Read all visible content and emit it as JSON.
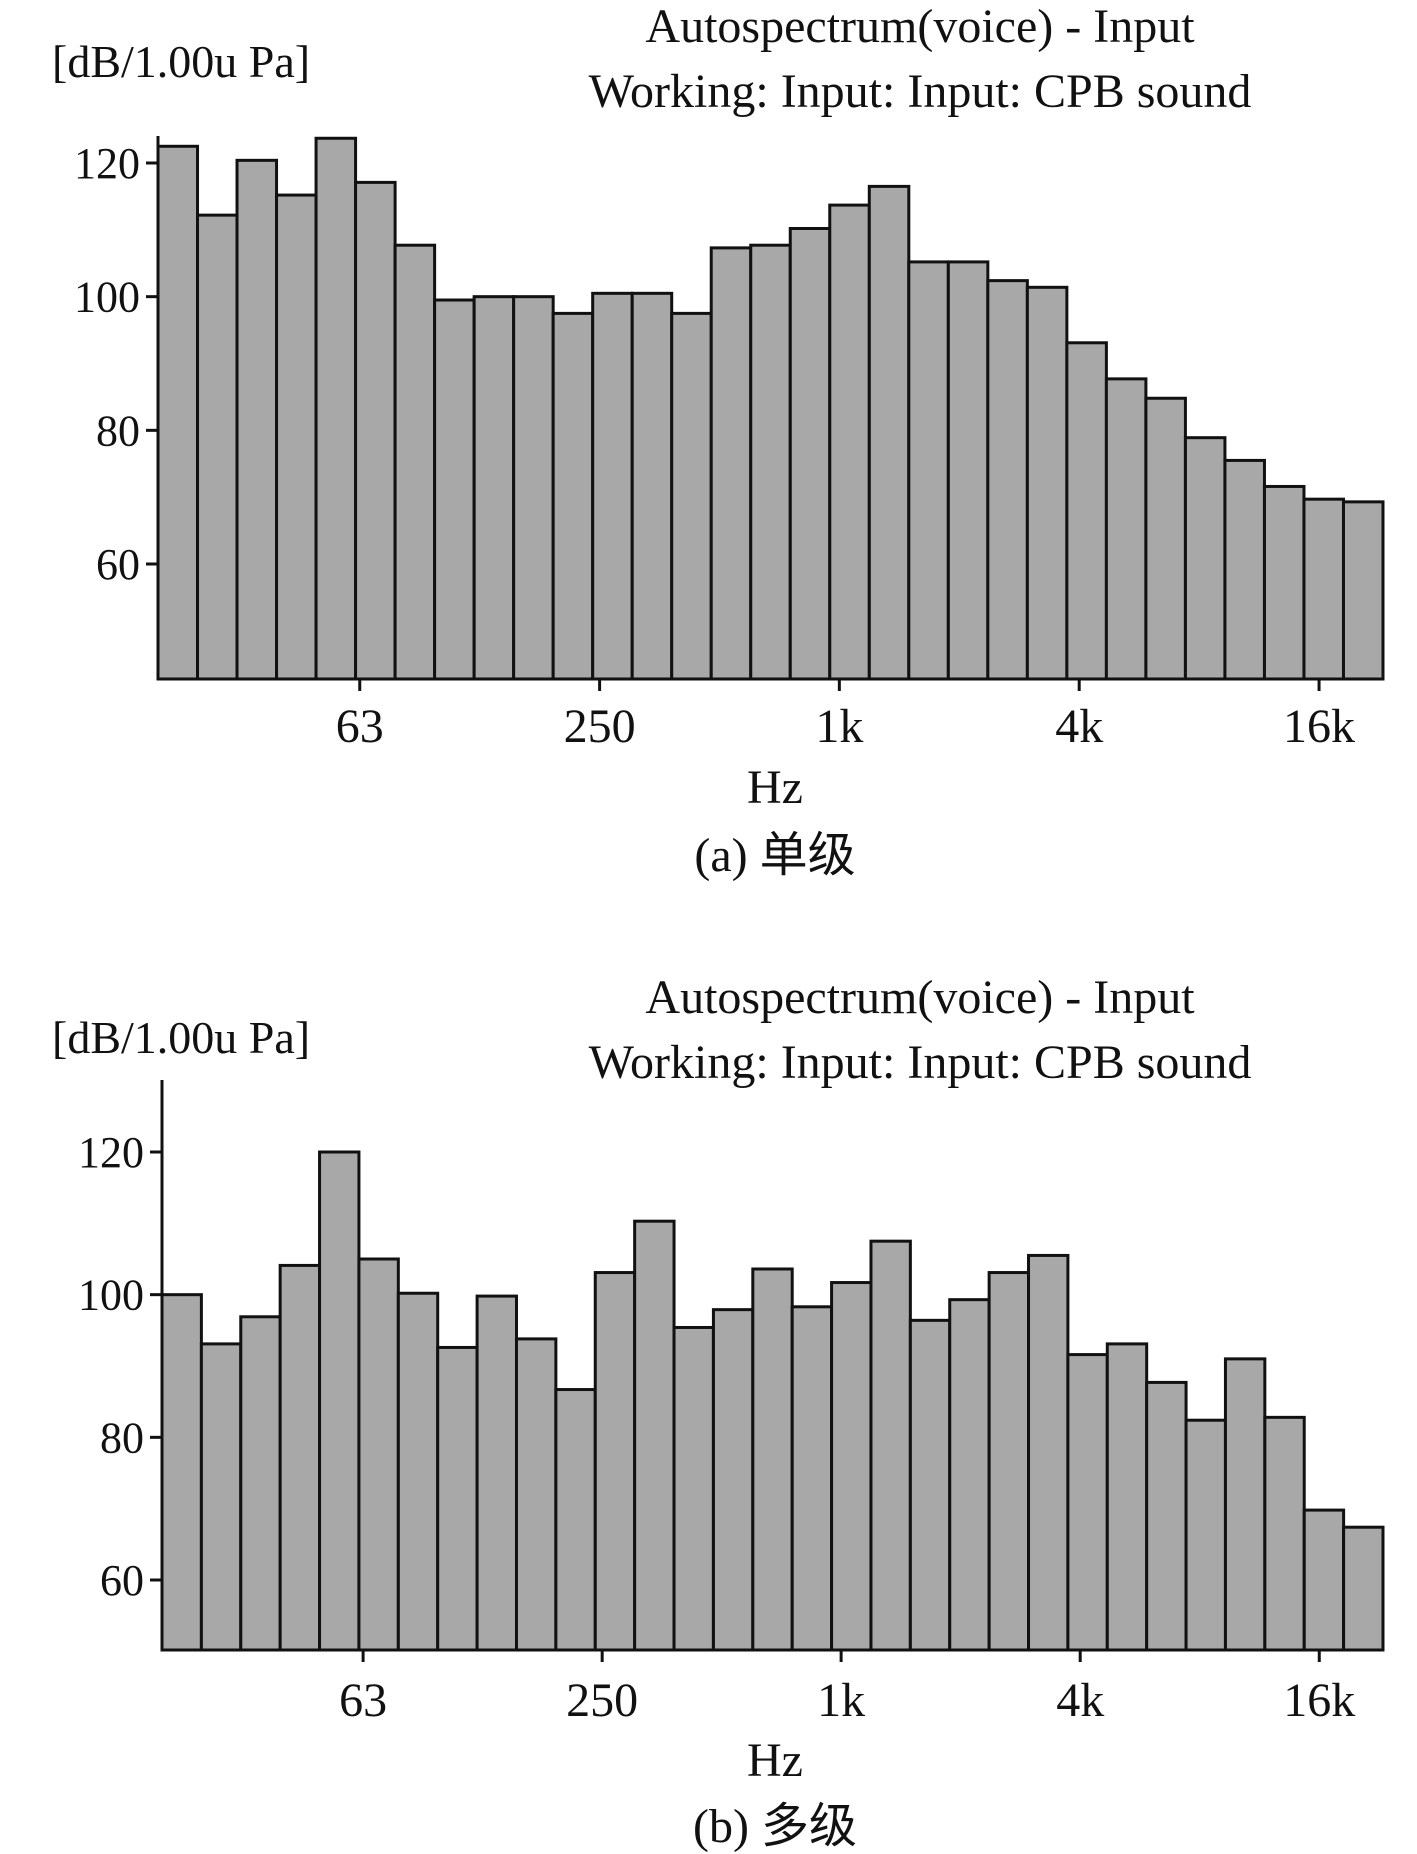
{
  "chart_data": [
    {
      "type": "bar",
      "title": "Autospectrum(voice) - Input",
      "subtitle": "Working: Input: Input: CPB sound",
      "ylabel": "[dB/1.00u Pa]",
      "xlabel": "Hz",
      "caption": "(a) 单级",
      "x_scale": "log (1/3-octave bands)",
      "xticks": [
        "63",
        "250",
        "1k",
        "4k",
        "16k"
      ],
      "yticks": [
        60,
        80,
        100,
        120
      ],
      "ylim": [
        43,
        130
      ],
      "grid": false,
      "bar_color": "#a8a8a8",
      "values": [
        122.5,
        112.2,
        120.4,
        115.2,
        123.7,
        117.1,
        107.7,
        99.5,
        100.0,
        100.0,
        97.5,
        100.5,
        100.5,
        97.5,
        107.3,
        107.7,
        110.2,
        113.7,
        116.5,
        105.2,
        105.2,
        102.4,
        101.4,
        93.1,
        87.7,
        84.8,
        78.9,
        75.5,
        71.6,
        69.7,
        69.3
      ]
    },
    {
      "type": "bar",
      "title": "Autospectrum(voice) - Input",
      "subtitle": "Working: Input: Input: CPB sound",
      "ylabel": "[dB/1.00u Pa]",
      "xlabel": "Hz",
      "caption": "(b) 多级",
      "x_scale": "log (1/3-octave bands)",
      "xticks": [
        "63",
        "250",
        "1k",
        "4k",
        "16k"
      ],
      "yticks": [
        60,
        80,
        100,
        120
      ],
      "ylim": [
        50,
        130
      ],
      "grid": false,
      "bar_color": "#a8a8a8",
      "values": [
        100.0,
        93.1,
        96.9,
        104.1,
        120.0,
        105.0,
        100.2,
        92.6,
        99.8,
        93.8,
        86.7,
        103.1,
        110.3,
        95.4,
        97.9,
        103.6,
        98.3,
        101.7,
        107.5,
        96.4,
        99.3,
        103.1,
        105.5,
        91.6,
        93.1,
        87.7,
        82.4,
        91.0,
        82.8,
        69.8,
        67.4
      ]
    }
  ]
}
